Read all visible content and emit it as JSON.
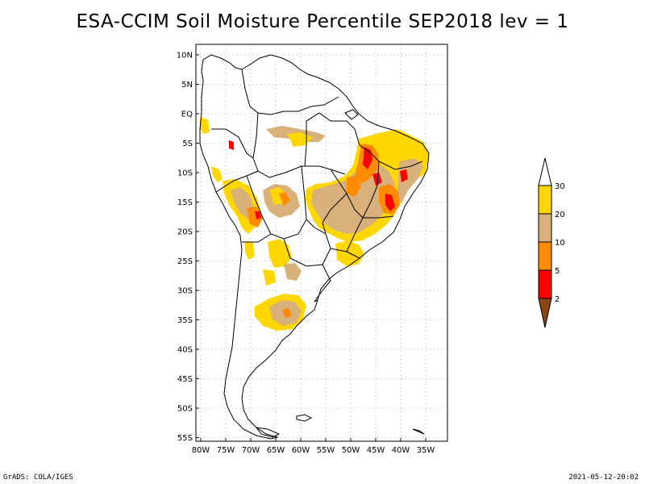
{
  "title": "ESA-CCIM Soil Moisture Percentile SEP2018 lev = 1",
  "map": {
    "lat_labels": [
      "10N",
      "5N",
      "EQ",
      "5S",
      "10S",
      "15S",
      "20S",
      "25S",
      "30S",
      "35S",
      "40S",
      "45S",
      "50S",
      "55S"
    ],
    "lon_labels": [
      "80W",
      "75W",
      "70W",
      "65W",
      "60W",
      "55W",
      "50W",
      "45W",
      "40W",
      "35W"
    ],
    "grid": true,
    "projection": "lat-lon",
    "lon_range": [
      -81,
      -33
    ],
    "lat_range": [
      -56,
      11
    ]
  },
  "colorbar": {
    "labels": [
      "30",
      "20",
      "10",
      "5",
      "2"
    ],
    "colors": {
      "above30": "#ffffff",
      "c20_30": "#ffd700",
      "c10_20": "#d8b07a",
      "c5_10": "#ff8c00",
      "c2_5": "#ff0000",
      "below2": "#8b4513"
    }
  },
  "footer": {
    "left": "GrADS: COLA/IGES",
    "right": "2021-05-12-20:02"
  }
}
